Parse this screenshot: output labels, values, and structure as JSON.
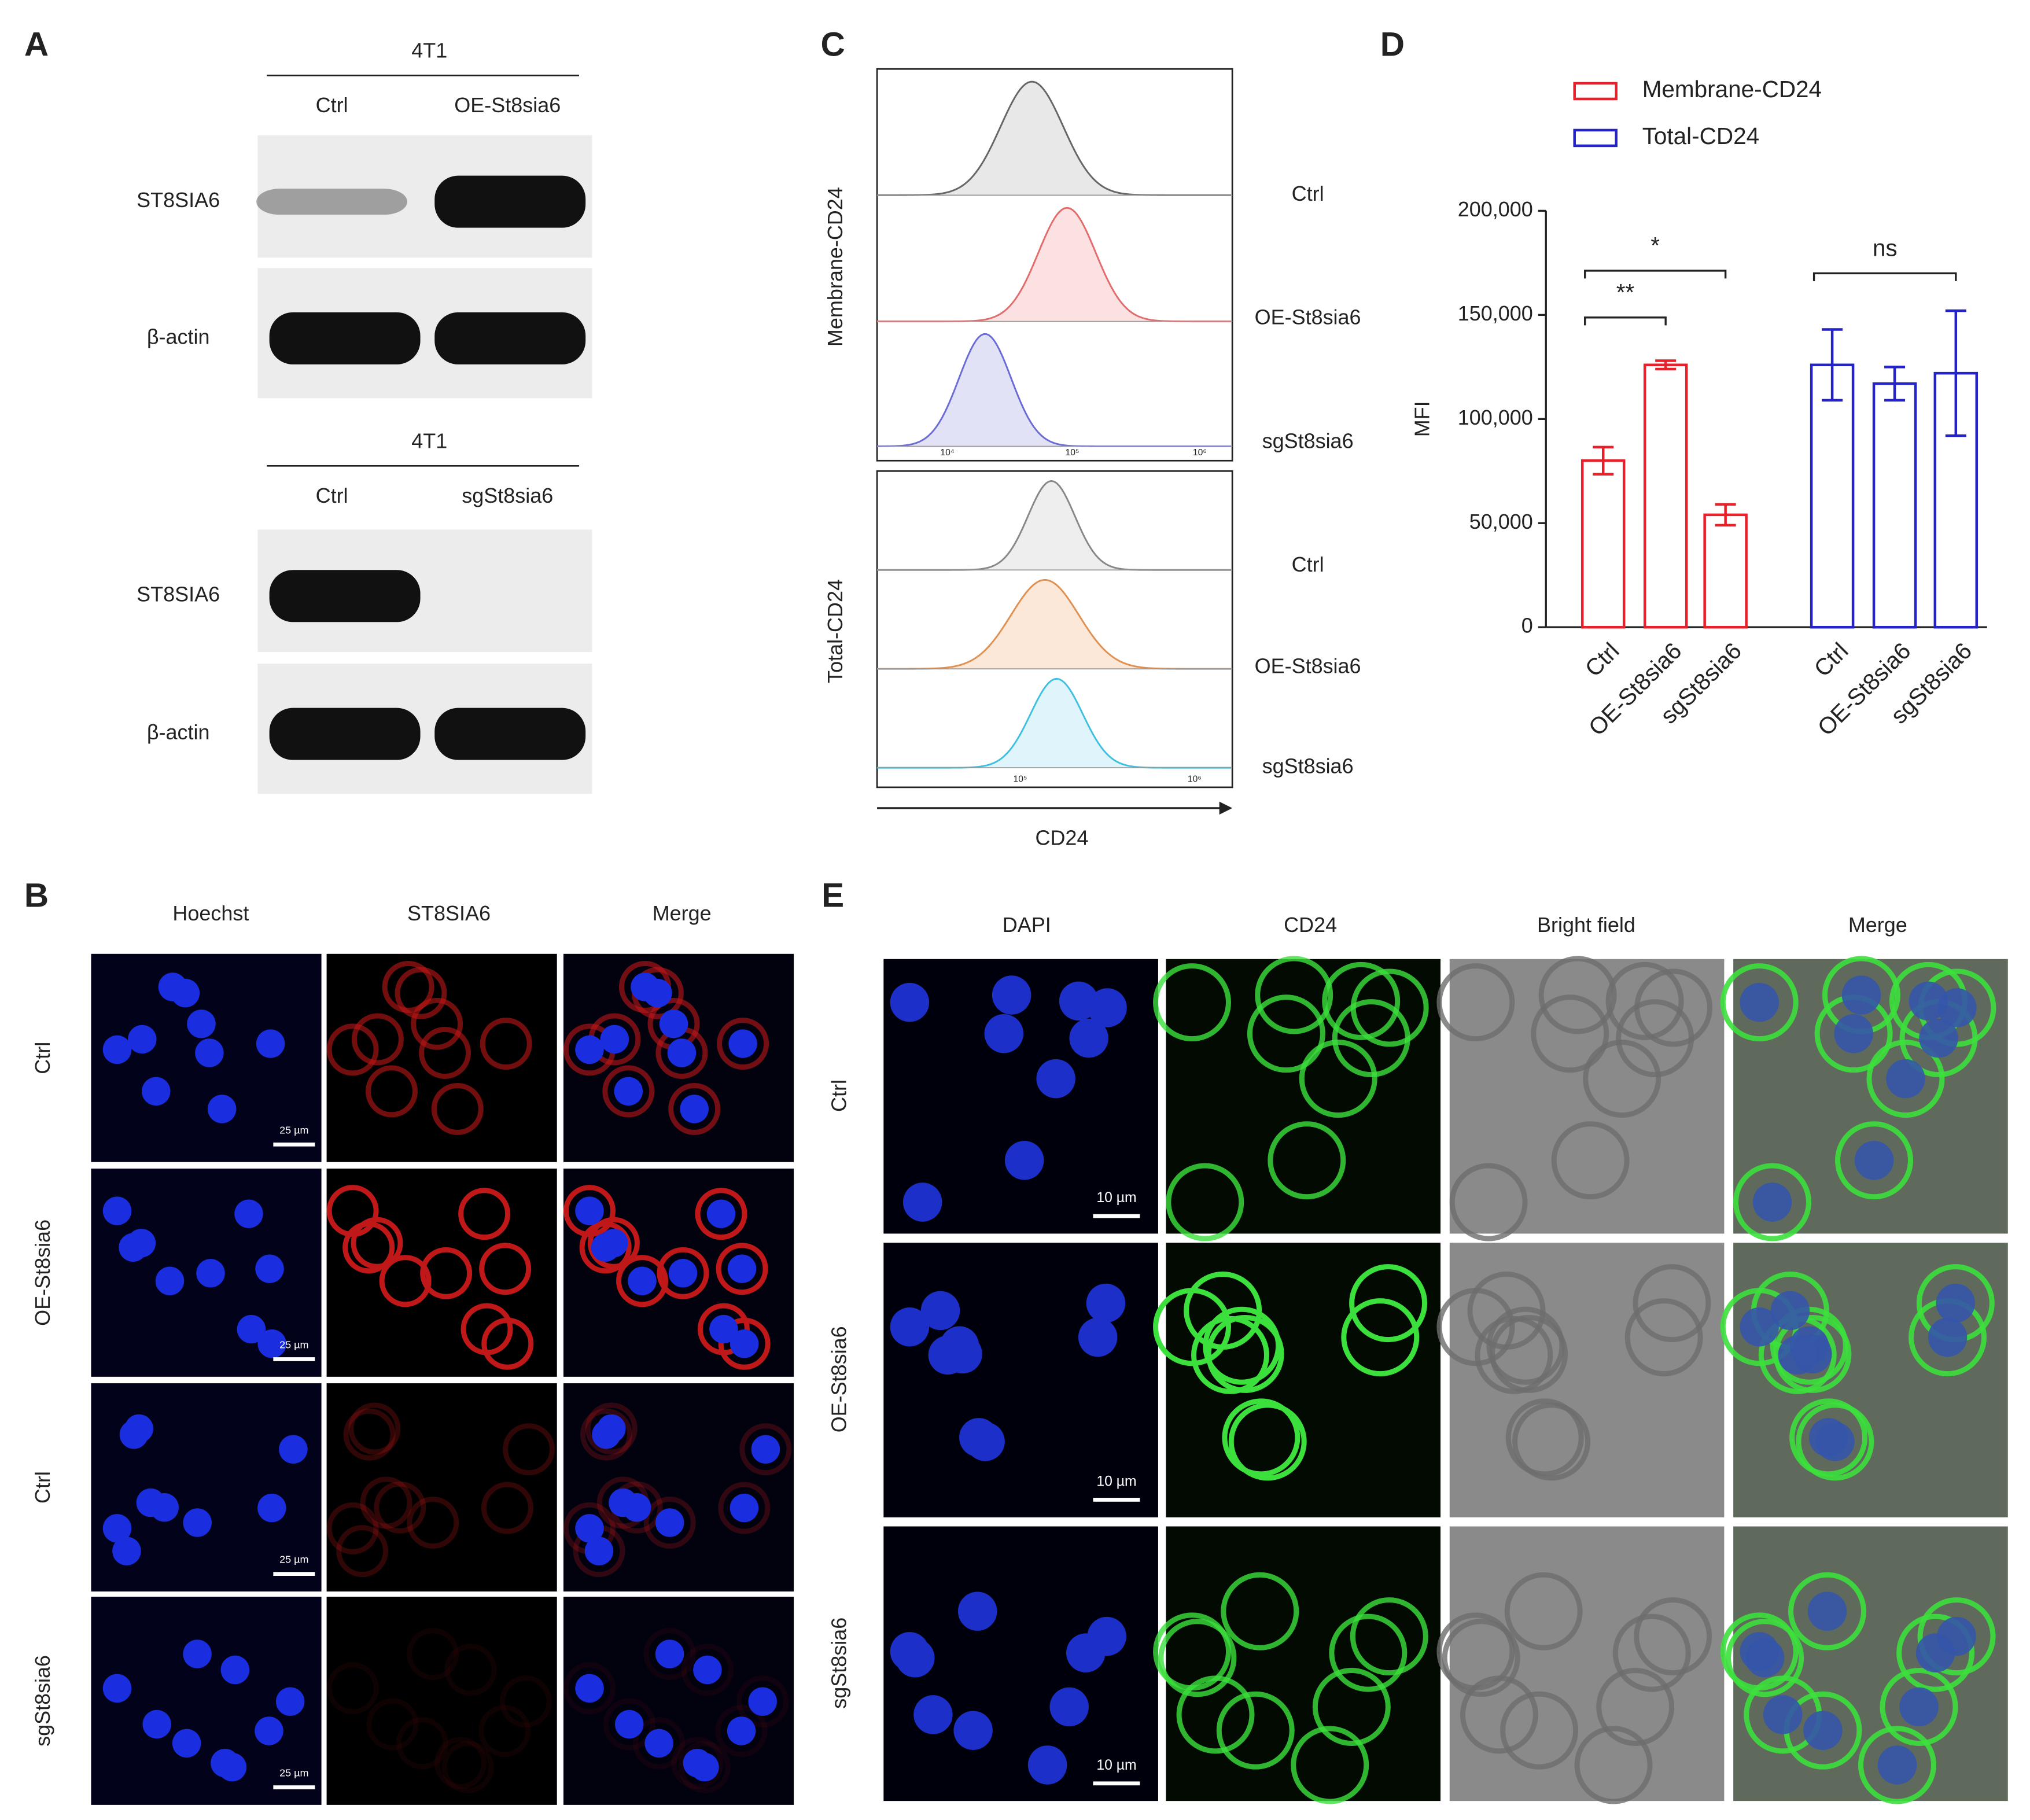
{
  "panel_a": {
    "label": "A",
    "blots": [
      {
        "cell_line": "4T1",
        "lanes": [
          "Ctrl",
          "OE-St8sia6"
        ],
        "proteins": [
          "ST8SIA6",
          "β-actin"
        ]
      },
      {
        "cell_line": "4T1",
        "lanes": [
          "Ctrl",
          "sgSt8sia6"
        ],
        "proteins": [
          "ST8SIA6",
          "β-actin"
        ]
      }
    ]
  },
  "panel_b": {
    "label": "B",
    "columns": [
      "Hoechst",
      "ST8SIA6",
      "Merge"
    ],
    "rows": [
      "Ctrl",
      "OE-St8sia6",
      "Ctrl",
      "sgSt8sia6"
    ],
    "scale_bar": "25 µm"
  },
  "panel_c": {
    "label": "C",
    "groups": [
      "Membrane-CD24",
      "Total-CD24"
    ],
    "samples": [
      [
        "Ctrl",
        "OE-St8sia6",
        "sgSt8sia6"
      ],
      [
        "Ctrl",
        "OE-St8sia6",
        "sgSt8sia6"
      ]
    ],
    "axis_ticks": [
      [
        "10⁴",
        "10⁵",
        "10⁶"
      ],
      [
        "10⁵",
        "10⁶"
      ]
    ],
    "x_label": "CD24"
  },
  "panel_e": {
    "label": "E",
    "columns": [
      "DAPI",
      "CD24",
      "Bright field",
      "Merge"
    ],
    "rows": [
      "Ctrl",
      "OE-St8sia6",
      "sgSt8sia6"
    ],
    "scale_bar": "10 µm"
  },
  "chart_data": {
    "type": "bar",
    "panel_label": "D",
    "y_label": "MFI",
    "categories": [
      "Ctrl",
      "OE-St8sia6",
      "sgSt8sia6",
      "Ctrl",
      "OE-St8sia6",
      "sgSt8sia6"
    ],
    "series": [
      {
        "name": "Membrane-CD24",
        "color": "#e8202a",
        "values": [
          80000,
          126000,
          54000,
          null,
          null,
          null
        ],
        "errors": [
          6500,
          2000,
          5000,
          null,
          null,
          null
        ]
      },
      {
        "name": "Total-CD24",
        "color": "#2323c8",
        "values": [
          null,
          null,
          null,
          126000,
          117000,
          122000
        ],
        "errors": [
          null,
          null,
          null,
          17000,
          8000,
          30000
        ]
      }
    ],
    "ylim": [
      0,
      200000
    ],
    "yticks": [
      0,
      {
        "value": 50000,
        "label": "50,000"
      },
      {
        "value": 100000,
        "label": "100,000"
      },
      {
        "value": 150000,
        "label": "150,000"
      },
      {
        "value": 200000,
        "label": "200,000"
      }
    ],
    "annotations": [
      {
        "text": "*",
        "from": 0,
        "to": 2
      },
      {
        "text": "**",
        "from": 0,
        "to": 1
      },
      {
        "text": "ns",
        "from": 3,
        "to": 5
      }
    ]
  }
}
